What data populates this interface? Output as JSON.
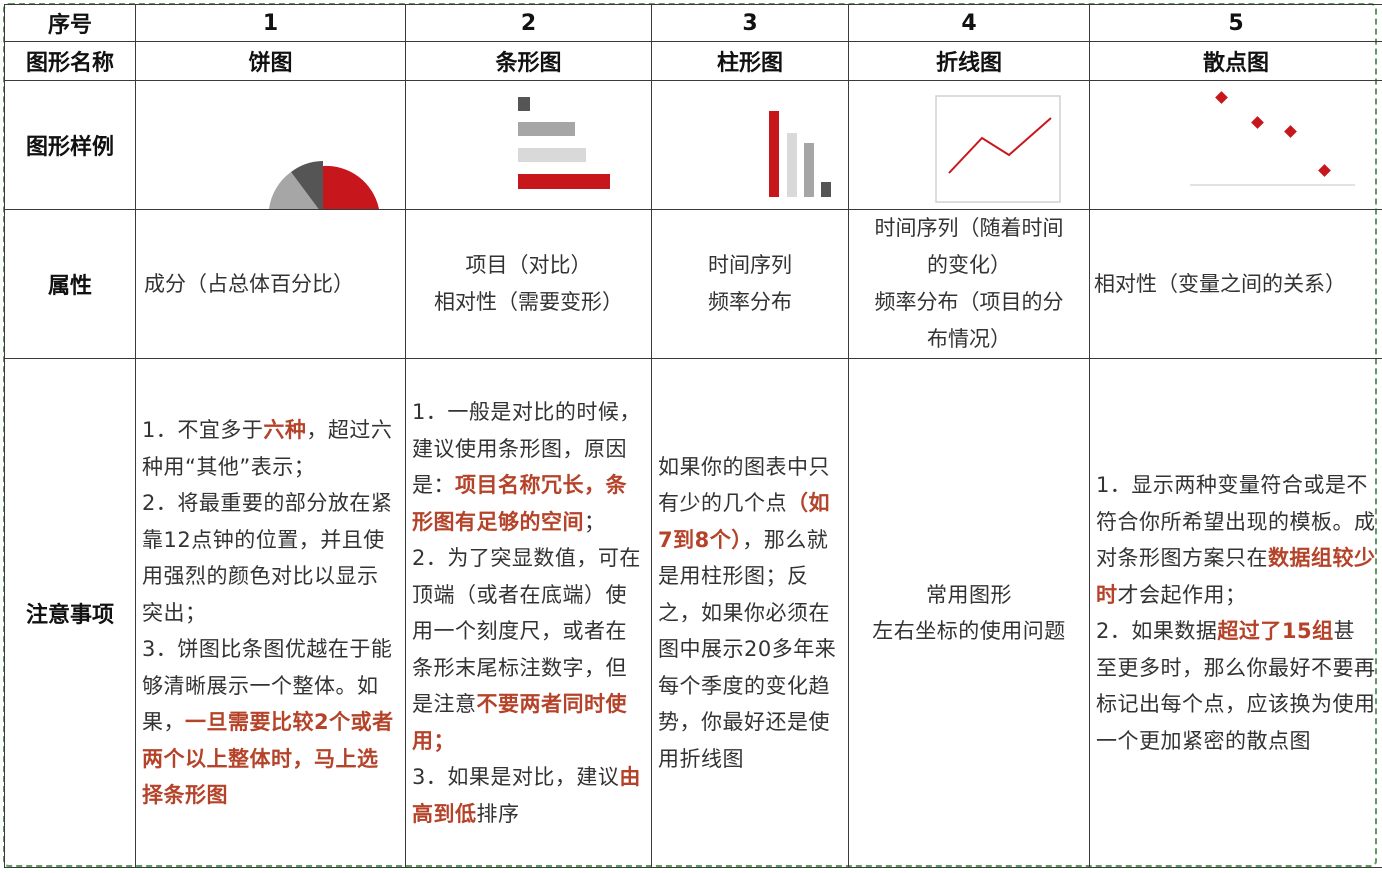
{
  "table": {
    "row_labels": {
      "index": "序号",
      "name": "图形名称",
      "sample": "图形样例",
      "attribute": "属性",
      "notes": "注意事项"
    },
    "columns": [
      {
        "index": "1",
        "name": "饼图",
        "sample_icon": "pie-chart-icon",
        "attribute_lines": [
          "成分（占总体百分比）"
        ],
        "notes": [
          {
            "text": "1．不宜多于",
            "hl": false
          },
          {
            "text": "六种",
            "hl": true
          },
          {
            "text": "，超过六种用“其他”表示；",
            "hl": false
          },
          {
            "text": "\n2．将最重要的部分放在紧靠12点钟的位置，并且使用强烈的颜色对比以显示突出；",
            "hl": false
          },
          {
            "text": "\n3．饼图比条图优越在于能够清晰展示一个整体。如果，",
            "hl": false
          },
          {
            "text": "一旦需要比较2个或者两个以上整体时，马上选择条形图",
            "hl": true
          }
        ]
      },
      {
        "index": "2",
        "name": "条形图",
        "sample_icon": "horizontal-bar-chart-icon",
        "attribute_lines": [
          "项目（对比）",
          "相对性（需要变形）"
        ],
        "notes": [
          {
            "text": "1．一般是对比的时候，建议使用条形图，原因是：",
            "hl": false
          },
          {
            "text": "项目名称冗长，条形图有足够的空间",
            "hl": true
          },
          {
            "text": "；",
            "hl": false
          },
          {
            "text": "\n2．为了突显数值，可在顶端（或者在底端）使用一个刻度尺，或者在条形末尾标注数字，但是注意",
            "hl": false
          },
          {
            "text": "不要两者同时使用；",
            "hl": true
          },
          {
            "text": "\n3．如果是对比，建议",
            "hl": false
          },
          {
            "text": "由高到低",
            "hl": true
          },
          {
            "text": "排序",
            "hl": false
          }
        ]
      },
      {
        "index": "3",
        "name": "柱形图",
        "sample_icon": "column-chart-icon",
        "attribute_lines": [
          "时间序列",
          "频率分布"
        ],
        "notes": [
          {
            "text": "如果你的图表中只有少的几个点",
            "hl": false
          },
          {
            "text": "（如7到8个）",
            "hl": true
          },
          {
            "text": "，那么就是用柱形图；反之，如果你必须在图中展示20多年来每个季度的变化趋势，你最好还是使用折线图",
            "hl": false
          }
        ]
      },
      {
        "index": "4",
        "name": "折线图",
        "sample_icon": "line-chart-icon",
        "attribute_lines": [
          "时间序列（随着时间",
          "的变化）",
          "频率分布（项目的分",
          "布情况）"
        ],
        "notes": [
          {
            "text": "常用图形\n左右坐标的使用问题",
            "hl": false
          }
        ]
      },
      {
        "index": "5",
        "name": "散点图",
        "sample_icon": "scatter-chart-icon",
        "attribute_lines": [
          "相对性（变量之间的关系）"
        ],
        "notes": [
          {
            "text": "1．显示两种变量符合或是不符合你所希望出现的模板。成对条形图方案只在",
            "hl": false
          },
          {
            "text": "数据组较少时",
            "hl": true
          },
          {
            "text": "才会起作用；",
            "hl": false
          },
          {
            "text": "\n2．如果数据",
            "hl": false
          },
          {
            "text": "超过了15组",
            "hl": true
          },
          {
            "text": "甚至更多时，那么你最好不要再标记出每个点，应该换为使用一个更加紧密的散点图",
            "hl": false
          }
        ]
      }
    ]
  },
  "colors": {
    "accent_red": "#c8161d",
    "highlight_text": "#b5432a",
    "gray_dark": "#555555",
    "gray_mid": "#a6a6a6",
    "gray_light": "#d9d9d9",
    "frame_green": "#5f9a5f"
  }
}
